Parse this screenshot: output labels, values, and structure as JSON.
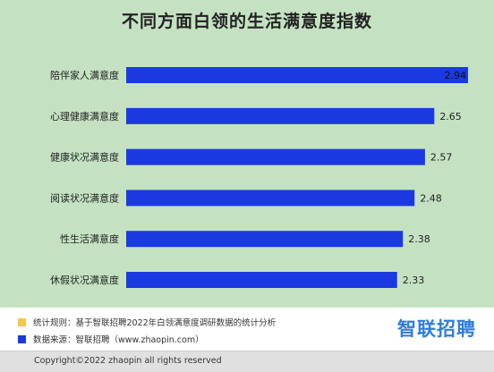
{
  "chart_data": {
    "type": "bar",
    "orientation": "horizontal",
    "title": "不同方面白领的生活满意度指数",
    "categories": [
      "陪伴家人满意度",
      "心理健康满意度",
      "健康状况满意度",
      "阅读状况满意度",
      "性生活满意度",
      "休假状况满意度"
    ],
    "values": [
      2.94,
      2.65,
      2.57,
      2.48,
      2.38,
      2.33
    ],
    "value_labels": [
      "2.94",
      "2.65",
      "2.57",
      "2.48",
      "2.38",
      "2.33"
    ],
    "xlim": [
      0,
      2.94
    ],
    "grid": false,
    "bar_color": "#1b39e0",
    "background_color": "#c4e2c2"
  },
  "notes": {
    "method": "统计规则：基于智联招聘2022年白领满意度调研数据的统计分析",
    "source": "数据来源：智联招聘（www.zhaopin.com）",
    "method_color": "#f2c94c",
    "source_color": "#1b39e0"
  },
  "logo": {
    "text": "智联招聘",
    "color": "#2d7de0"
  },
  "copyright": "Copyright©2022 zhaopin all rights reserved"
}
